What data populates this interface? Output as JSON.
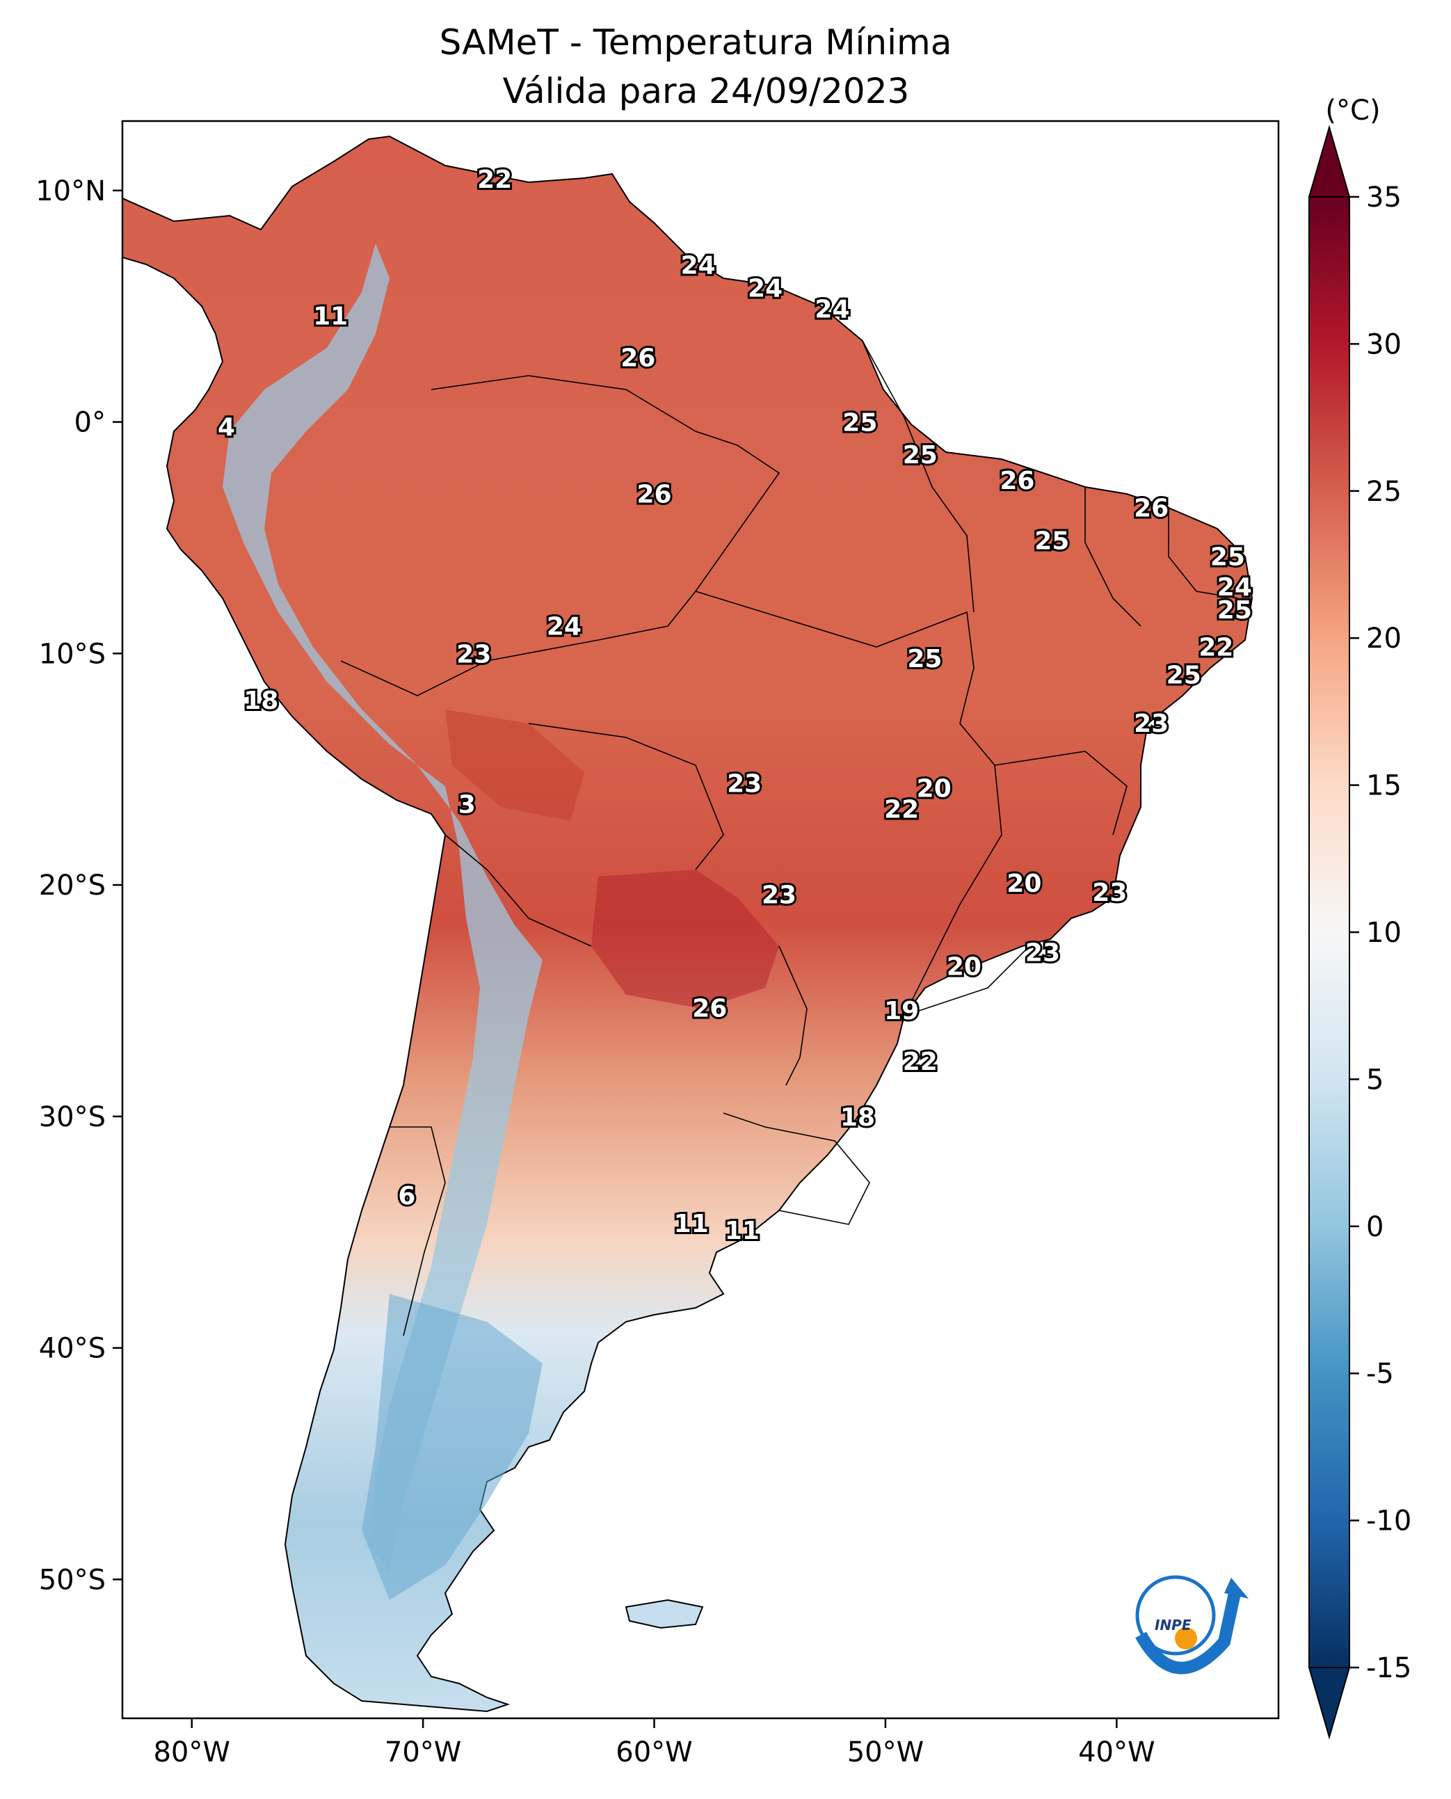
{
  "title": {
    "line1": "SAMeT - Temperatura Mínima",
    "line2": "Válida para 24/09/2023"
  },
  "axes": {
    "x_ticks": [
      {
        "value": -80,
        "label": "80°W"
      },
      {
        "value": -70,
        "label": "70°W"
      },
      {
        "value": -60,
        "label": "60°W"
      },
      {
        "value": -50,
        "label": "50°W"
      },
      {
        "value": -40,
        "label": "40°W"
      }
    ],
    "y_ticks": [
      {
        "value": 10,
        "label": "10°N"
      },
      {
        "value": 0,
        "label": "0°"
      },
      {
        "value": -10,
        "label": "10°S"
      },
      {
        "value": -20,
        "label": "20°S"
      },
      {
        "value": -30,
        "label": "30°S"
      },
      {
        "value": -40,
        "label": "40°S"
      },
      {
        "value": -50,
        "label": "50°S"
      }
    ],
    "lon_range": [
      -83,
      -33
    ],
    "lat_range": [
      -56,
      13
    ]
  },
  "colorbar": {
    "unit": "(°C)",
    "min": -15,
    "max": 35,
    "ticks": [
      {
        "value": 35,
        "label": "35"
      },
      {
        "value": 30,
        "label": "30"
      },
      {
        "value": 25,
        "label": "25"
      },
      {
        "value": 20,
        "label": "20"
      },
      {
        "value": 15,
        "label": "15"
      },
      {
        "value": 10,
        "label": "10"
      },
      {
        "value": 5,
        "label": "5"
      },
      {
        "value": 0,
        "label": "0"
      },
      {
        "value": -5,
        "label": "-5"
      },
      {
        "value": -10,
        "label": "-10"
      },
      {
        "value": -15,
        "label": "-15"
      }
    ],
    "colors": [
      "#053061",
      "#2166ac",
      "#4393c3",
      "#92c5de",
      "#d1e5f0",
      "#f7f7f7",
      "#fddbc7",
      "#f4a582",
      "#d6604d",
      "#b2182b",
      "#67001f"
    ]
  },
  "city_values": [
    {
      "lon": -66.9,
      "lat": 10.5,
      "label": "22"
    },
    {
      "lon": -74.0,
      "lat": 4.6,
      "label": "11"
    },
    {
      "lon": -78.5,
      "lat": -0.2,
      "label": "4"
    },
    {
      "lon": -58.1,
      "lat": 6.8,
      "label": "24"
    },
    {
      "lon": -55.2,
      "lat": 5.8,
      "label": "24"
    },
    {
      "lon": -52.3,
      "lat": 4.9,
      "label": "24"
    },
    {
      "lon": -60.7,
      "lat": 2.8,
      "label": "26"
    },
    {
      "lon": -51.1,
      "lat": 0.0,
      "label": "25"
    },
    {
      "lon": -48.5,
      "lat": -1.4,
      "label": "25"
    },
    {
      "lon": -60.0,
      "lat": -3.1,
      "label": "26"
    },
    {
      "lon": -44.3,
      "lat": -2.5,
      "label": "26"
    },
    {
      "lon": -42.8,
      "lat": -5.1,
      "label": "25"
    },
    {
      "lon": -38.5,
      "lat": -3.7,
      "label": "26"
    },
    {
      "lon": -35.2,
      "lat": -5.8,
      "label": "25"
    },
    {
      "lon": -34.9,
      "lat": -7.1,
      "label": "24"
    },
    {
      "lon": -34.9,
      "lat": -8.1,
      "label": "25"
    },
    {
      "lon": -35.7,
      "lat": -9.7,
      "label": "22"
    },
    {
      "lon": -37.1,
      "lat": -10.9,
      "label": "25"
    },
    {
      "lon": -63.9,
      "lat": -8.8,
      "label": "24"
    },
    {
      "lon": -67.8,
      "lat": -10.0,
      "label": "23"
    },
    {
      "lon": -48.3,
      "lat": -10.2,
      "label": "25"
    },
    {
      "lon": -77.0,
      "lat": -12.0,
      "label": "18"
    },
    {
      "lon": -38.5,
      "lat": -13.0,
      "label": "23"
    },
    {
      "lon": -56.1,
      "lat": -15.6,
      "label": "23"
    },
    {
      "lon": -47.9,
      "lat": -15.8,
      "label": "20"
    },
    {
      "lon": -49.3,
      "lat": -16.7,
      "label": "22"
    },
    {
      "lon": -68.1,
      "lat": -16.5,
      "label": "3"
    },
    {
      "lon": -44.0,
      "lat": -19.9,
      "label": "20"
    },
    {
      "lon": -54.6,
      "lat": -20.4,
      "label": "23"
    },
    {
      "lon": -40.3,
      "lat": -20.3,
      "label": "23"
    },
    {
      "lon": -43.2,
      "lat": -22.9,
      "label": "23"
    },
    {
      "lon": -46.6,
      "lat": -23.5,
      "label": "20"
    },
    {
      "lon": -57.6,
      "lat": -25.3,
      "label": "26"
    },
    {
      "lon": -49.3,
      "lat": -25.4,
      "label": "19"
    },
    {
      "lon": -48.5,
      "lat": -27.6,
      "label": "22"
    },
    {
      "lon": -51.2,
      "lat": -30.0,
      "label": "18"
    },
    {
      "lon": -70.7,
      "lat": -33.4,
      "label": "6"
    },
    {
      "lon": -58.4,
      "lat": -34.6,
      "label": "11"
    },
    {
      "lon": -56.2,
      "lat": -34.9,
      "label": "11"
    }
  ],
  "logo": {
    "text": "INPE"
  }
}
